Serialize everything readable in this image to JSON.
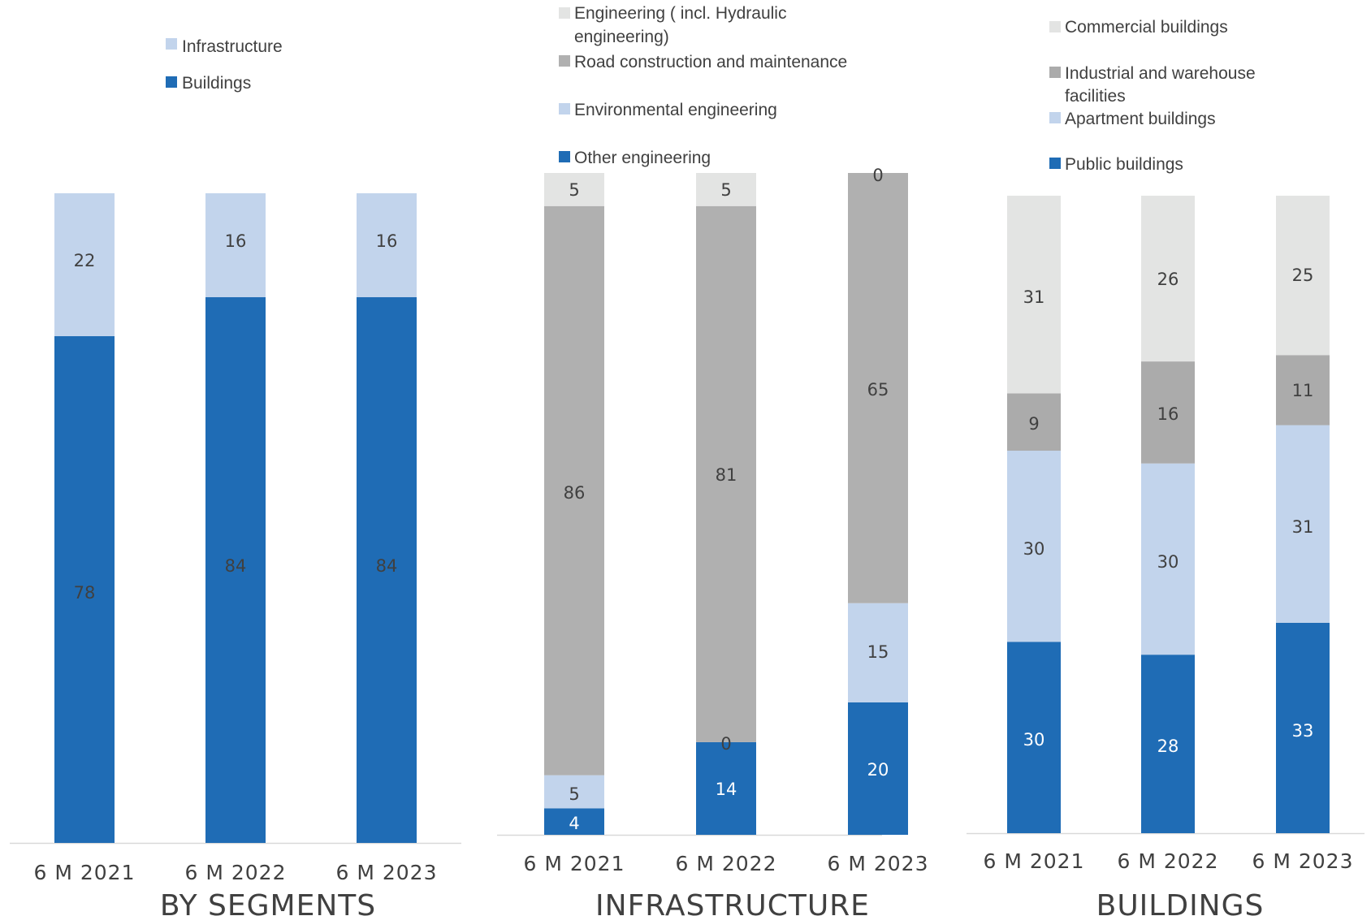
{
  "chart_data": [
    {
      "type": "bar",
      "stacked": true,
      "title": "BY SEGMENTS",
      "categories": [
        "6 M 2021",
        "6 M 2022",
        "6 M 2023"
      ],
      "series": [
        {
          "name": "Buildings",
          "color": "#1F6CB5",
          "values": [
            78,
            84,
            84
          ]
        },
        {
          "name": "Infrastructure",
          "color": "#C2D4EC",
          "values": [
            22,
            16,
            16
          ]
        }
      ],
      "legend": [
        "Infrastructure",
        "Buildings"
      ],
      "ylim": [
        0,
        100
      ],
      "grid": false,
      "legend_position": "top"
    },
    {
      "type": "bar",
      "stacked": true,
      "title": "INFRASTRUCTURE",
      "categories": [
        "6 M 2021",
        "6 M 2022",
        "6 M 2023"
      ],
      "series": [
        {
          "name": "Other engineering",
          "color": "#1F6CB5",
          "values": [
            4,
            14,
            20
          ]
        },
        {
          "name": "Environmental engineering",
          "color": "#C2D4EC",
          "values": [
            5,
            0,
            15
          ]
        },
        {
          "name": "Road construction and maintenance",
          "color": "#B0B0B0",
          "values": [
            86,
            81,
            65
          ]
        },
        {
          "name": "Engineering ( incl. Hydraulic engineering)",
          "color": "#E3E4E3",
          "values": [
            5,
            5,
            0
          ]
        }
      ],
      "legend": [
        "Engineering ( incl. Hydraulic engineering)",
        "Road construction and maintenance",
        "Environmental engineering",
        "Other engineering"
      ],
      "ylim": [
        0,
        100
      ],
      "grid": false,
      "legend_position": "top"
    },
    {
      "type": "bar",
      "stacked": true,
      "title": "BUILDINGS",
      "categories": [
        "6 M 2021",
        "6 M 2022",
        "6 M 2023"
      ],
      "series": [
        {
          "name": "Public buildings",
          "color": "#1F6CB5",
          "values": [
            30,
            28,
            33
          ]
        },
        {
          "name": "Apartment buildings",
          "color": "#C2D4EC",
          "values": [
            30,
            30,
            31
          ]
        },
        {
          "name": "Industrial and warehouse facilities",
          "color": "#ABABAB",
          "values": [
            9,
            16,
            11
          ]
        },
        {
          "name": "Commercial buildings",
          "color": "#E3E4E3",
          "values": [
            31,
            26,
            25
          ]
        }
      ],
      "legend": [
        "Commercial buildings",
        "Industrial and warehouse facilities",
        "Apartment buildings",
        "Public buildings"
      ],
      "ylim": [
        0,
        100
      ],
      "grid": false,
      "legend_position": "top"
    }
  ]
}
